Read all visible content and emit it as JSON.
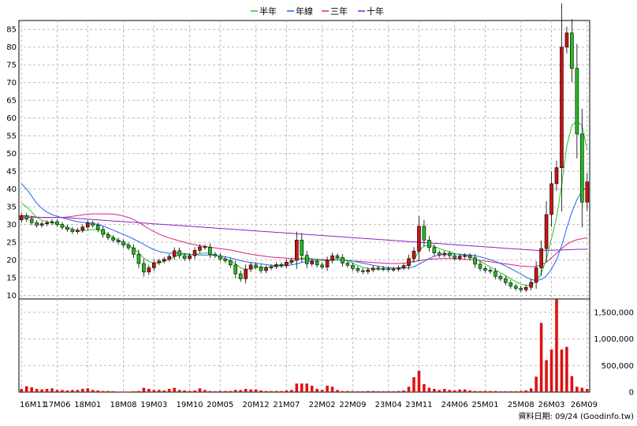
{
  "chart_data": {
    "type": "candlestick",
    "legend": [
      {
        "name": "半年",
        "color": "#22cc22"
      },
      {
        "name": "年線",
        "color": "#2266ee"
      },
      {
        "name": "三年",
        "color": "#dd2277"
      },
      {
        "name": "十年",
        "color": "#8822cc"
      }
    ],
    "x_labels": [
      "16M11",
      "17M06",
      "18M01",
      "18M08",
      "19M03",
      "19M10",
      "20M05",
      "20M12",
      "21M07",
      "22M02",
      "22M09",
      "23M04",
      "23M11",
      "24M06",
      "25M01",
      "25M08",
      "26M03",
      "26M09"
    ],
    "price_axis": {
      "ticks": [
        10,
        15,
        20,
        25,
        30,
        35,
        40,
        45,
        50,
        55,
        60,
        65,
        70,
        75,
        80,
        85
      ],
      "ylim": [
        9,
        87.5
      ]
    },
    "volume_axis": {
      "ticks": [
        "0",
        "500,000",
        "1,000,000",
        "1,500,000"
      ],
      "values": [
        0,
        500000,
        1000000,
        1500000
      ],
      "ylim": [
        0,
        1750000
      ]
    },
    "candle_colors": {
      "up": "#cc1111",
      "down": "#22bb22",
      "wick": "#000000"
    },
    "candles_close": [
      32.5,
      31.5,
      30.5,
      29.8,
      30.2,
      30.5,
      30.8,
      30.0,
      29.2,
      28.6,
      28.0,
      28.4,
      29.3,
      30.4,
      29.8,
      28.6,
      27.2,
      26.3,
      25.6,
      25.1,
      24.2,
      23.4,
      21.6,
      19.0,
      16.6,
      17.8,
      19.2,
      19.7,
      20.2,
      21.0,
      22.6,
      21.2,
      20.4,
      21.2,
      22.7,
      23.7,
      23.6,
      21.6,
      21.2,
      20.3,
      19.8,
      18.6,
      16.1,
      14.7,
      17.4,
      18.6,
      18.0,
      17.0,
      17.8,
      18.1,
      18.7,
      18.4,
      19.4,
      19.9,
      25.6,
      21.3,
      18.9,
      19.6,
      18.6,
      18.0,
      19.9,
      21.2,
      20.7,
      19.1,
      18.5,
      17.6,
      17.0,
      16.7,
      17.2,
      17.7,
      17.6,
      17.5,
      17.3,
      17.4,
      17.8,
      18.4,
      20.4,
      22.5,
      29.5,
      25.6,
      23.5,
      22.0,
      21.4,
      21.9,
      21.2,
      20.5,
      21.1,
      21.2,
      20.6,
      18.8,
      17.6,
      17.1,
      16.8,
      15.4,
      14.7,
      13.6,
      12.6,
      12.0,
      11.6,
      12.3,
      13.7,
      17.8,
      23.2,
      32.8,
      41.5,
      46.0,
      80.0,
      84.0,
      74.0,
      55.5,
      36.3,
      42.0
    ],
    "candles_dir": [
      1,
      -1,
      -1,
      -1,
      1,
      1,
      1,
      -1,
      -1,
      -1,
      -1,
      1,
      1,
      1,
      -1,
      -1,
      -1,
      -1,
      -1,
      -1,
      -1,
      -1,
      -1,
      -1,
      -1,
      1,
      1,
      1,
      1,
      1,
      1,
      -1,
      -1,
      1,
      1,
      1,
      -1,
      -1,
      -1,
      -1,
      -1,
      -1,
      -1,
      -1,
      1,
      1,
      -1,
      -1,
      1,
      1,
      1,
      -1,
      1,
      1,
      1,
      -1,
      -1,
      1,
      -1,
      -1,
      1,
      1,
      -1,
      -1,
      -1,
      -1,
      -1,
      -1,
      1,
      1,
      -1,
      -1,
      -1,
      1,
      1,
      1,
      1,
      1,
      1,
      -1,
      -1,
      -1,
      -1,
      1,
      -1,
      -1,
      1,
      1,
      -1,
      -1,
      -1,
      -1,
      -1,
      -1,
      -1,
      -1,
      -1,
      -1,
      -1,
      1,
      1,
      1,
      1,
      1,
      1,
      1,
      1,
      1,
      -1,
      -1,
      -1,
      1
    ],
    "volume": [
      60000,
      110000,
      90000,
      60000,
      50000,
      60000,
      70000,
      40000,
      40000,
      30000,
      40000,
      40000,
      60000,
      70000,
      40000,
      30000,
      20000,
      20000,
      15000,
      10000,
      10000,
      10000,
      15000,
      20000,
      80000,
      60000,
      40000,
      40000,
      30000,
      60000,
      80000,
      40000,
      30000,
      20000,
      30000,
      70000,
      40000,
      20000,
      15000,
      20000,
      20000,
      20000,
      40000,
      40000,
      60000,
      50000,
      50000,
      30000,
      20000,
      20000,
      20000,
      20000,
      30000,
      40000,
      160000,
      160000,
      160000,
      120000,
      60000,
      40000,
      120000,
      100000,
      40000,
      20000,
      20000,
      15000,
      15000,
      15000,
      20000,
      20000,
      15000,
      15000,
      15000,
      15000,
      20000,
      30000,
      100000,
      280000,
      400000,
      150000,
      80000,
      60000,
      40000,
      60000,
      40000,
      30000,
      50000,
      50000,
      30000,
      20000,
      20000,
      20000,
      20000,
      20000,
      15000,
      15000,
      15000,
      15000,
      20000,
      30000,
      70000,
      290000,
      1300000,
      600000,
      800000,
      1750000,
      800000,
      850000,
      300000,
      100000,
      80000,
      60000
    ],
    "ma_half_year": [
      36.0,
      35.0,
      33.5,
      32.0,
      31.2,
      30.8,
      30.5,
      30.2,
      29.8,
      29.2,
      28.6,
      28.2,
      28.2,
      28.4,
      28.6,
      28.5,
      28.0,
      27.2,
      26.4,
      25.6,
      24.9,
      24.2,
      23.3,
      22.0,
      20.5,
      19.6,
      19.1,
      19.2,
      19.6,
      20.2,
      20.9,
      21.5,
      21.6,
      21.5,
      21.5,
      21.8,
      22.0,
      21.8,
      21.3,
      20.8,
      20.3,
      19.8,
      18.9,
      17.8,
      17.3,
      17.6,
      17.9,
      17.9,
      17.9,
      18.1,
      18.4,
      18.6,
      18.9,
      19.2,
      20.2,
      20.6,
      20.5,
      20.4,
      20.1,
      19.8,
      19.9,
      20.3,
      20.5,
      20.3,
      19.8,
      19.1,
      18.5,
      17.9,
      17.6,
      17.5,
      17.4,
      17.4,
      17.4,
      17.5,
      17.7,
      18.0,
      18.8,
      20.0,
      22.6,
      23.9,
      24.2,
      23.8,
      23.2,
      22.7,
      22.3,
      21.8,
      21.5,
      21.3,
      21.0,
      20.4,
      19.6,
      18.8,
      18.0,
      17.2,
      16.4,
      15.6,
      14.7,
      13.9,
      13.2,
      12.9,
      12.9,
      14.0,
      16.2,
      20.2,
      26.0,
      32.0,
      41.0,
      52.0,
      58.0,
      59.0,
      58.0,
      51.0
    ],
    "ma_year": [
      41.5,
      40.0,
      38.0,
      36.0,
      34.5,
      33.5,
      32.8,
      32.3,
      31.9,
      31.5,
      31.1,
      30.8,
      30.6,
      30.5,
      30.3,
      30.0,
      29.6,
      29.0,
      28.4,
      27.8,
      27.2,
      26.6,
      25.9,
      25.2,
      24.4,
      23.6,
      22.9,
      22.4,
      22.1,
      21.9,
      21.9,
      21.9,
      21.8,
      21.6,
      21.5,
      21.4,
      21.4,
      21.4,
      21.3,
      21.1,
      20.9,
      20.6,
      20.2,
      19.8,
      19.5,
      19.3,
      19.1,
      18.9,
      18.7,
      18.5,
      18.4,
      18.3,
      18.4,
      18.6,
      18.9,
      19.3,
      19.6,
      19.8,
      19.9,
      19.9,
      19.9,
      19.9,
      20.0,
      20.0,
      19.9,
      19.7,
      19.4,
      19.1,
      18.8,
      18.5,
      18.2,
      18.0,
      17.8,
      17.7,
      17.7,
      17.7,
      17.8,
      18.1,
      18.8,
      19.6,
      20.4,
      21.0,
      21.4,
      21.6,
      21.7,
      21.7,
      21.6,
      21.5,
      21.4,
      21.2,
      20.9,
      20.5,
      20.1,
      19.6,
      19.0,
      18.3,
      17.6,
      16.8,
      16.0,
      15.2,
      14.5,
      14.2,
      14.5,
      15.5,
      17.4,
      20.0,
      24.0,
      29.0,
      33.5,
      37.0,
      39.5,
      40.5
    ],
    "ma_three_year": [
      32.5,
      32.4,
      32.3,
      32.1,
      32.0,
      32.0,
      32.0,
      32.0,
      32.0,
      32.1,
      32.3,
      32.5,
      32.7,
      32.9,
      33.0,
      33.0,
      33.0,
      33.0,
      32.9,
      32.7,
      32.4,
      32.0,
      31.4,
      30.6,
      29.7,
      28.8,
      28.0,
      27.3,
      26.7,
      26.2,
      25.8,
      25.4,
      25.0,
      24.6,
      24.3,
      24.0,
      23.8,
      23.6,
      23.4,
      23.2,
      23.0,
      22.8,
      22.5,
      22.2,
      21.9,
      21.6,
      21.4,
      21.2,
      21.0,
      20.8,
      20.7,
      20.6,
      20.5,
      20.4,
      20.4,
      20.3,
      20.3,
      20.2,
      20.2,
      20.1,
      20.1,
      20.0,
      20.0,
      19.9,
      19.8,
      19.7,
      19.6,
      19.5,
      19.4,
      19.3,
      19.2,
      19.1,
      19.0,
      19.0,
      19.0,
      19.1,
      19.3,
      19.5,
      19.8,
      20.0,
      20.2,
      20.3,
      20.4,
      20.4,
      20.4,
      20.4,
      20.3,
      20.2,
      20.1,
      20.0,
      19.9,
      19.7,
      19.5,
      19.3,
      19.1,
      18.9,
      18.7,
      18.5,
      18.3,
      18.2,
      18.1,
      18.2,
      18.6,
      19.4,
      20.6,
      21.9,
      23.2,
      24.4,
      25.2,
      25.7,
      26.0,
      26.3
    ],
    "ma_ten_year": [
      32.0,
      32.0,
      32.0,
      32.0,
      32.0,
      32.0,
      32.0,
      32.0,
      32.0,
      31.9,
      31.8,
      31.7,
      31.6,
      31.5,
      31.4,
      31.3,
      31.2,
      31.1,
      31.0,
      30.9,
      30.8,
      30.7,
      30.6,
      30.5,
      30.4,
      30.3,
      30.2,
      30.1,
      30.0,
      29.9,
      29.8,
      29.7,
      29.6,
      29.5,
      29.4,
      29.3,
      29.2,
      29.1,
      29.0,
      28.9,
      28.8,
      28.7,
      28.6,
      28.5,
      28.4,
      28.3,
      28.2,
      28.1,
      28.0,
      27.9,
      27.8,
      27.7,
      27.6,
      27.5,
      27.4,
      27.3,
      27.2,
      27.1,
      27.0,
      26.9,
      26.8,
      26.7,
      26.6,
      26.5,
      26.4,
      26.3,
      26.2,
      26.1,
      26.0,
      25.9,
      25.8,
      25.7,
      25.6,
      25.5,
      25.4,
      25.3,
      25.2,
      25.1,
      25.0,
      24.9,
      24.8,
      24.7,
      24.6,
      24.5,
      24.4,
      24.3,
      24.2,
      24.1,
      24.0,
      23.9,
      23.8,
      23.7,
      23.6,
      23.5,
      23.4,
      23.3,
      23.2,
      23.1,
      23.0,
      22.9,
      22.8,
      22.7,
      22.7,
      22.7,
      22.7,
      22.8,
      22.8,
      22.9,
      22.9,
      23.0,
      23.0,
      23.0
    ]
  },
  "footer": {
    "source": "資料日期: 09/24  (Goodinfo.tw)"
  }
}
